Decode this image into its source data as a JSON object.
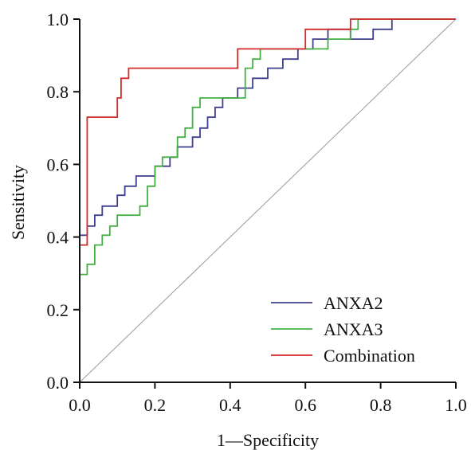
{
  "chart_data": {
    "type": "line",
    "title": "",
    "xlabel": "1—Specificity",
    "ylabel": "Sensitivity",
    "xlim": [
      0.0,
      1.0
    ],
    "ylim": [
      0.0,
      1.0
    ],
    "x_ticks": [
      "0.0",
      "0.2",
      "0.4",
      "0.6",
      "0.8",
      "1.0"
    ],
    "y_ticks": [
      "0.0",
      "0.2",
      "0.4",
      "0.6",
      "0.8",
      "1.0"
    ],
    "grid": false,
    "legend_position": "bottom-right",
    "reference_line": {
      "x": [
        0,
        1
      ],
      "y": [
        0,
        1
      ],
      "color": "#999999"
    },
    "series": [
      {
        "name": "ANXA2",
        "color": "#3f3f8f",
        "x": [
          0,
          0,
          0.02,
          0.02,
          0.04,
          0.04,
          0.06,
          0.06,
          0.1,
          0.1,
          0.12,
          0.12,
          0.15,
          0.15,
          0.2,
          0.2,
          0.24,
          0.24,
          0.26,
          0.26,
          0.3,
          0.3,
          0.32,
          0.32,
          0.34,
          0.34,
          0.36,
          0.36,
          0.38,
          0.38,
          0.42,
          0.42,
          0.46,
          0.46,
          0.5,
          0.5,
          0.54,
          0.54,
          0.58,
          0.58,
          0.62,
          0.62,
          0.66,
          0.66,
          0.72,
          0.72,
          0.78,
          0.78,
          0.83,
          0.83,
          1.0
        ],
        "y": [
          0,
          0.405,
          0.405,
          0.43,
          0.43,
          0.46,
          0.46,
          0.485,
          0.485,
          0.515,
          0.515,
          0.54,
          0.54,
          0.568,
          0.568,
          0.595,
          0.595,
          0.62,
          0.62,
          0.648,
          0.648,
          0.675,
          0.675,
          0.7,
          0.7,
          0.73,
          0.73,
          0.757,
          0.757,
          0.783,
          0.783,
          0.81,
          0.81,
          0.837,
          0.837,
          0.865,
          0.865,
          0.89,
          0.89,
          0.918,
          0.918,
          0.945,
          0.945,
          0.972,
          0.972,
          0.945,
          0.945,
          0.972,
          0.972,
          1.0,
          1.0
        ]
      },
      {
        "name": "ANXA3",
        "color": "#44b044",
        "x": [
          0,
          0,
          0.02,
          0.02,
          0.04,
          0.04,
          0.06,
          0.06,
          0.08,
          0.08,
          0.1,
          0.1,
          0.16,
          0.16,
          0.18,
          0.18,
          0.2,
          0.2,
          0.22,
          0.22,
          0.26,
          0.26,
          0.28,
          0.28,
          0.3,
          0.3,
          0.32,
          0.32,
          0.44,
          0.44,
          0.46,
          0.46,
          0.48,
          0.48,
          0.5,
          0.5,
          0.66,
          0.66,
          0.72,
          0.72,
          0.74,
          0.74,
          1.0
        ],
        "y": [
          0,
          0.297,
          0.297,
          0.325,
          0.325,
          0.378,
          0.378,
          0.405,
          0.405,
          0.43,
          0.43,
          0.46,
          0.46,
          0.485,
          0.485,
          0.54,
          0.54,
          0.595,
          0.595,
          0.62,
          0.62,
          0.675,
          0.675,
          0.7,
          0.7,
          0.757,
          0.757,
          0.783,
          0.783,
          0.865,
          0.865,
          0.89,
          0.89,
          0.918,
          0.918,
          0.918,
          0.918,
          0.945,
          0.945,
          0.972,
          0.972,
          1.0,
          1.0
        ]
      },
      {
        "name": "Combination",
        "color": "#d42a2a",
        "x": [
          0,
          0,
          0.02,
          0.02,
          0.1,
          0.1,
          0.11,
          0.11,
          0.13,
          0.13,
          0.42,
          0.42,
          0.6,
          0.6,
          0.72,
          0.72,
          1.0
        ],
        "y": [
          0,
          0.378,
          0.378,
          0.73,
          0.73,
          0.783,
          0.783,
          0.837,
          0.837,
          0.865,
          0.865,
          0.918,
          0.918,
          0.972,
          0.972,
          1.0,
          1.0
        ]
      }
    ]
  }
}
